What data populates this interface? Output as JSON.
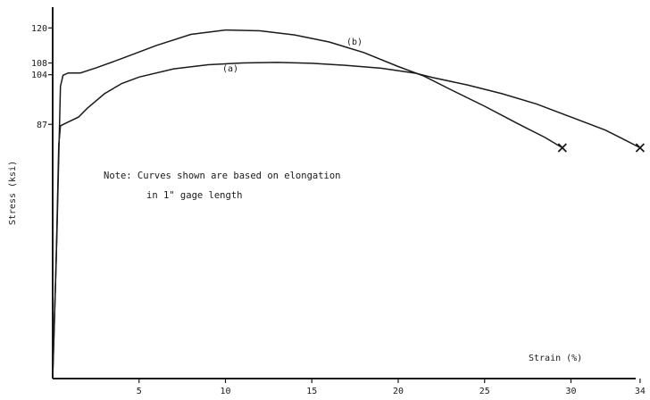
{
  "chart_data": {
    "type": "line",
    "xlabel": "Strain (%)",
    "ylabel": "Stress (ksi)",
    "x_ticks": [
      5,
      10,
      15,
      20,
      25,
      30,
      34
    ],
    "x_tick_labels": [
      "5",
      "10",
      "15",
      "20",
      "25",
      "30",
      "34"
    ],
    "y_ticks": [
      87,
      104,
      108,
      120
    ],
    "y_tick_labels": [
      "87",
      "104",
      "108",
      "120"
    ],
    "xlim": [
      0,
      35
    ],
    "ylim": [
      0,
      125
    ],
    "grid": false,
    "note": {
      "line1": "Note: Curves shown are based on elongation",
      "line2": "in 1\" gage length"
    },
    "series": [
      {
        "name": "(a)",
        "points": [
          [
            0,
            0
          ],
          [
            0.2,
            40
          ],
          [
            0.35,
            80
          ],
          [
            0.45,
            86.5
          ],
          [
            0.8,
            87.5
          ],
          [
            1.5,
            89.5
          ],
          [
            2,
            92.5
          ],
          [
            3,
            97.5
          ],
          [
            4,
            101
          ],
          [
            5,
            103.2
          ],
          [
            7,
            106
          ],
          [
            9,
            107.4
          ],
          [
            11,
            108
          ],
          [
            13,
            108.2
          ],
          [
            15,
            107.9
          ],
          [
            17,
            107.2
          ],
          [
            19,
            106.2
          ],
          [
            21,
            104.5
          ],
          [
            22,
            103
          ],
          [
            24,
            100.5
          ],
          [
            26,
            97.5
          ],
          [
            28,
            94
          ],
          [
            30,
            89.5
          ],
          [
            32,
            85
          ],
          [
            33,
            82
          ],
          [
            34,
            79
          ]
        ],
        "fracture": true
      },
      {
        "name": "(b)",
        "points": [
          [
            0,
            0
          ],
          [
            0.25,
            50
          ],
          [
            0.45,
            100
          ],
          [
            0.6,
            103.8
          ],
          [
            0.9,
            104.6
          ],
          [
            1.6,
            104.6
          ],
          [
            2.5,
            106.3
          ],
          [
            4,
            109.5
          ],
          [
            6,
            114
          ],
          [
            8,
            117.8
          ],
          [
            10,
            119.3
          ],
          [
            12,
            119
          ],
          [
            14,
            117.6
          ],
          [
            16,
            115.2
          ],
          [
            18,
            111.6
          ],
          [
            20,
            106.8
          ],
          [
            21.5,
            103.5
          ],
          [
            23,
            99
          ],
          [
            25,
            93.2
          ],
          [
            27,
            87
          ],
          [
            28.5,
            82.5
          ],
          [
            29.5,
            79
          ]
        ],
        "fracture": true
      }
    ]
  }
}
